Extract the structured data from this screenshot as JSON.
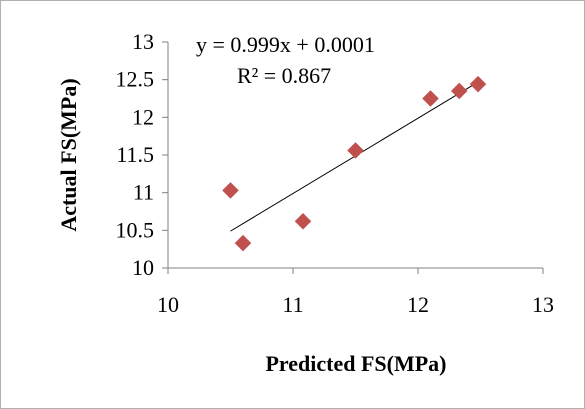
{
  "chart_data": {
    "type": "scatter",
    "xlabel": "Predicted FS(MPa)",
    "ylabel": "Actual FS(MPa)",
    "xlim": [
      10,
      13
    ],
    "ylim": [
      10,
      13
    ],
    "x_ticks": [
      "10",
      "11",
      "12",
      "13"
    ],
    "y_ticks": [
      "10",
      "10.5",
      "11",
      "11.5",
      "12",
      "12.5",
      "13"
    ],
    "x_tick_values": [
      10,
      11,
      12,
      13
    ],
    "y_tick_values": [
      10,
      10.5,
      11,
      11.5,
      12,
      12.5,
      13
    ],
    "grid": false,
    "legend": "none",
    "series": [
      {
        "color": "#c0504d",
        "marker": "diamond",
        "points": [
          {
            "x": 10.5,
            "y": 11.03
          },
          {
            "x": 10.6,
            "y": 10.33
          },
          {
            "x": 11.08,
            "y": 10.62
          },
          {
            "x": 11.5,
            "y": 11.56
          },
          {
            "x": 12.1,
            "y": 12.25
          },
          {
            "x": 12.33,
            "y": 12.35
          },
          {
            "x": 12.48,
            "y": 12.44
          }
        ]
      }
    ],
    "trendline": {
      "color": "#000000",
      "x_range": [
        10.5,
        12.48
      ],
      "slope": 0.999,
      "intercept": 0.0001
    },
    "annotations": [
      {
        "name": "equation",
        "text": "y = 0.999x + 0.0001"
      },
      {
        "name": "r-squared",
        "text": "R² = 0.867"
      }
    ]
  }
}
